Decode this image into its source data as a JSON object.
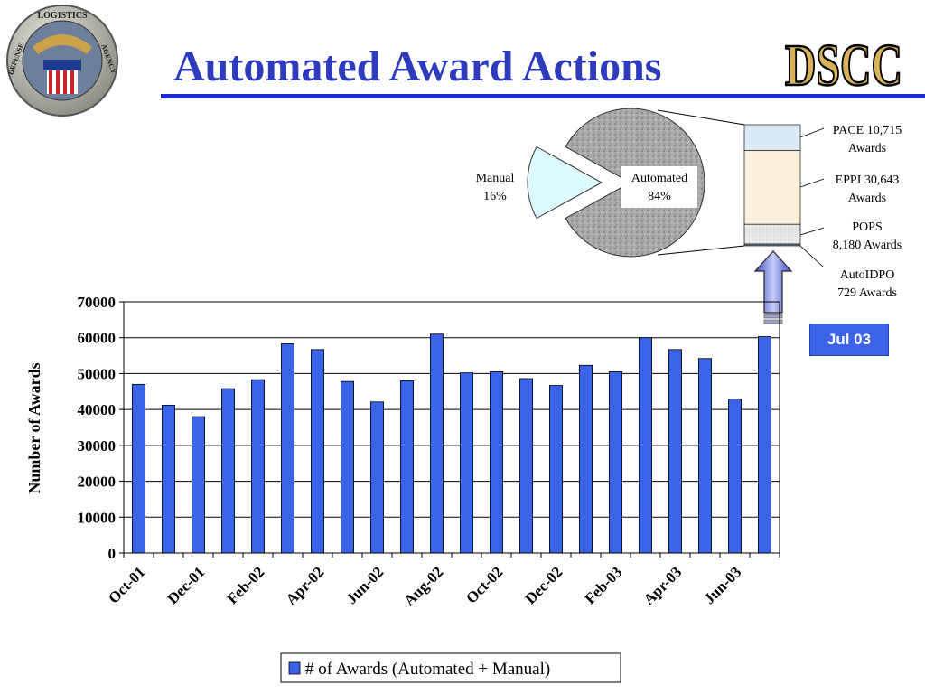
{
  "slide": {
    "title": "Automated Award Actions",
    "logo_text": "DSCC",
    "seal_text_top": "LOGISTICS",
    "seal_text_left": "DEFENSE",
    "seal_text_right": "AGENCY",
    "callout_label": "Jul 03"
  },
  "colors": {
    "title": "#2e3bbd",
    "bar": "#3a63e8",
    "rule": "#1a2ccf"
  },
  "chart_data": [
    {
      "type": "bar",
      "title": "",
      "xlabel": "",
      "ylabel": "Number of Awards",
      "ylim": [
        0,
        70000
      ],
      "yticks": [
        "0",
        "10000",
        "20000",
        "30000",
        "40000",
        "50000",
        "60000",
        "70000"
      ],
      "categories": [
        "Oct-01",
        "Nov-01",
        "Dec-01",
        "Jan-02",
        "Feb-02",
        "Mar-02",
        "Apr-02",
        "May-02",
        "Jun-02",
        "Jul-02",
        "Aug-02",
        "Sep-02",
        "Oct-02",
        "Nov-02",
        "Dec-02",
        "Jan-03",
        "Feb-03",
        "Mar-03",
        "Apr-03",
        "May-03",
        "Jun-03",
        "Jul-03"
      ],
      "xtick_labels": [
        "Oct-01",
        "Dec-01",
        "Feb-02",
        "Apr-02",
        "Jun-02",
        "Aug-02",
        "Oct-02",
        "Dec-02",
        "Feb-03",
        "Apr-03",
        "Jun-03"
      ],
      "series": [
        {
          "name": "# of Awards (Automated + Manual)",
          "values": [
            47000,
            41200,
            38000,
            45800,
            48300,
            58300,
            56700,
            47800,
            42100,
            48000,
            61000,
            50200,
            50500,
            48600,
            46700,
            52300,
            50500,
            60000,
            56700,
            54200,
            42900,
            60300
          ]
        }
      ],
      "grid": true,
      "legend": "bottom-center"
    },
    {
      "type": "pie",
      "slices": [
        {
          "label": "Automated",
          "value": 84,
          "text": "84%"
        },
        {
          "label": "Manual",
          "value": 16,
          "text": "16%"
        }
      ],
      "breakdown": {
        "type": "stacked-bar",
        "of": "Automated",
        "items": [
          {
            "name": "PACE",
            "value": 10715,
            "label_line1": "PACE 10,715",
            "label_line2": "Awards"
          },
          {
            "name": "EPPI",
            "value": 30643,
            "label_line1": "EPPI 30,643",
            "label_line2": "Awards"
          },
          {
            "name": "POPS",
            "value": 8180,
            "label_line1": "POPS",
            "label_line2": "8,180 Awards"
          },
          {
            "name": "AutoIDPO",
            "value": 729,
            "label_line1": "AutoIDPO",
            "label_line2": "729 Awards"
          }
        ]
      }
    }
  ]
}
